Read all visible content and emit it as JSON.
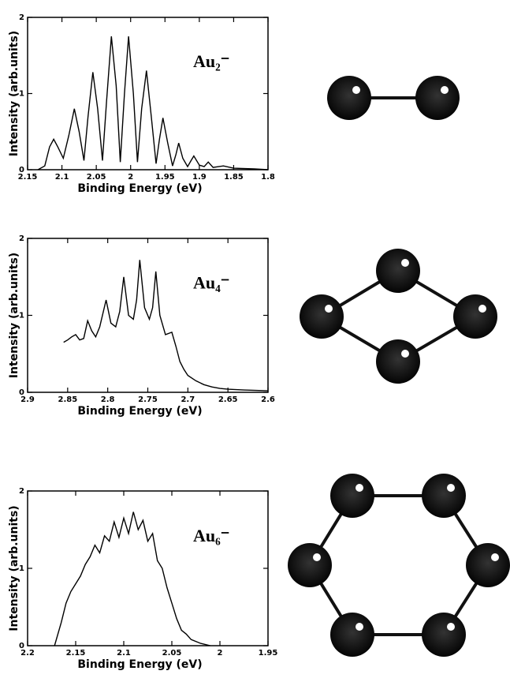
{
  "chart_data": [
    {
      "type": "line",
      "annotation": "Au₂⁻",
      "xlabel": "Binding Energy (eV)",
      "ylabel": "Intensity (arb.units)",
      "color": "#000000",
      "xlim": [
        2.15,
        1.8
      ],
      "xticks": [
        2.15,
        2.1,
        2.05,
        2,
        1.95,
        1.9,
        1.85,
        1.8
      ],
      "ylim": [
        0,
        2
      ],
      "yticks": [
        0,
        1,
        2
      ],
      "x": [
        2.135,
        2.125,
        2.118,
        2.112,
        2.106,
        2.098,
        2.09,
        2.082,
        2.075,
        2.068,
        2.062,
        2.055,
        2.048,
        2.041,
        2.035,
        2.028,
        2.021,
        2.015,
        2.009,
        2.003,
        1.996,
        1.99,
        1.984,
        1.977,
        1.97,
        1.963,
        1.958,
        1.953,
        1.946,
        1.939,
        1.934,
        1.93,
        1.924,
        1.917,
        1.912,
        1.908,
        1.9,
        1.893,
        1.887,
        1.88,
        1.865,
        1.85,
        1.82,
        1.8
      ],
      "values": [
        0,
        0.05,
        0.3,
        0.4,
        0.3,
        0.15,
        0.45,
        0.8,
        0.5,
        0.12,
        0.7,
        1.28,
        0.8,
        0.12,
        0.9,
        1.75,
        1.1,
        0.1,
        1.0,
        1.75,
        1.0,
        0.1,
        0.8,
        1.3,
        0.7,
        0.08,
        0.4,
        0.68,
        0.35,
        0.05,
        0.2,
        0.35,
        0.15,
        0.04,
        0.12,
        0.18,
        0.06,
        0.04,
        0.1,
        0.03,
        0.05,
        0.02,
        0.01,
        0
      ]
    },
    {
      "type": "line",
      "annotation": "Au₄⁻",
      "xlabel": "Binding Energy (eV)",
      "ylabel": "Intensity (arb.units)",
      "color": "#000000",
      "xlim": [
        2.9,
        2.6
      ],
      "xticks": [
        2.9,
        2.85,
        2.8,
        2.75,
        2.7,
        2.65,
        2.6
      ],
      "ylim": [
        0,
        2
      ],
      "yticks": [
        0,
        1,
        2
      ],
      "x": [
        2.855,
        2.85,
        2.845,
        2.84,
        2.835,
        2.83,
        2.825,
        2.82,
        2.815,
        2.81,
        2.802,
        2.796,
        2.79,
        2.785,
        2.78,
        2.774,
        2.768,
        2.764,
        2.76,
        2.754,
        2.748,
        2.744,
        2.74,
        2.735,
        2.728,
        2.72,
        2.715,
        2.71,
        2.705,
        2.7,
        2.69,
        2.68,
        2.67,
        2.66,
        2.65,
        2.63,
        2.6
      ],
      "values": [
        0.65,
        0.68,
        0.72,
        0.75,
        0.68,
        0.7,
        0.93,
        0.8,
        0.72,
        0.85,
        1.2,
        0.9,
        0.85,
        1.05,
        1.5,
        1.0,
        0.95,
        1.2,
        1.72,
        1.1,
        0.95,
        1.1,
        1.57,
        1.0,
        0.75,
        0.78,
        0.6,
        0.4,
        0.3,
        0.22,
        0.15,
        0.1,
        0.07,
        0.05,
        0.04,
        0.03,
        0.02
      ]
    },
    {
      "type": "line",
      "annotation": "Au₆⁻",
      "xlabel": "Binding Energy (eV)",
      "ylabel": "Intensity (arb.units)",
      "color": "#000000",
      "xlim": [
        2.2,
        1.95
      ],
      "xticks": [
        2.2,
        2.15,
        2.1,
        2.05,
        2,
        1.95
      ],
      "ylim": [
        0,
        2
      ],
      "yticks": [
        0,
        1,
        2
      ],
      "x": [
        2.172,
        2.165,
        2.16,
        2.155,
        2.15,
        2.145,
        2.14,
        2.135,
        2.13,
        2.125,
        2.12,
        2.115,
        2.11,
        2.105,
        2.1,
        2.095,
        2.09,
        2.085,
        2.08,
        2.075,
        2.07,
        2.065,
        2.06,
        2.055,
        2.05,
        2.045,
        2.04,
        2.035,
        2.03,
        2.02,
        2.01
      ],
      "values": [
        0,
        0.3,
        0.55,
        0.7,
        0.8,
        0.9,
        1.05,
        1.15,
        1.3,
        1.2,
        1.42,
        1.35,
        1.6,
        1.4,
        1.65,
        1.45,
        1.73,
        1.5,
        1.62,
        1.35,
        1.45,
        1.1,
        1.0,
        0.75,
        0.55,
        0.35,
        0.2,
        0.15,
        0.08,
        0.03,
        0
      ]
    }
  ]
}
